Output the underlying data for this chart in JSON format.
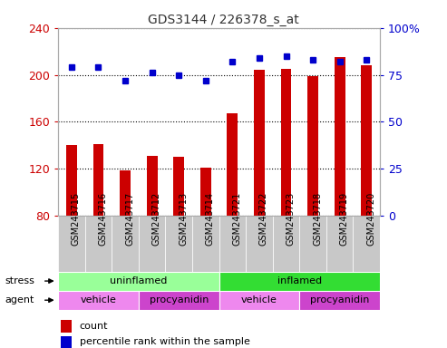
{
  "title": "GDS3144 / 226378_s_at",
  "samples": [
    "GSM243715",
    "GSM243716",
    "GSM243717",
    "GSM243712",
    "GSM243713",
    "GSM243714",
    "GSM243721",
    "GSM243722",
    "GSM243723",
    "GSM243718",
    "GSM243719",
    "GSM243720"
  ],
  "counts": [
    140,
    141,
    119,
    131,
    130,
    121,
    167,
    204,
    205,
    199,
    215,
    208
  ],
  "percentile_ranks": [
    79,
    79,
    72,
    76,
    75,
    72,
    82,
    84,
    85,
    83,
    82,
    83
  ],
  "ylim_left": [
    80,
    240
  ],
  "ylim_right": [
    0,
    100
  ],
  "yticks_left": [
    80,
    120,
    160,
    200,
    240
  ],
  "yticks_right": [
    0,
    25,
    50,
    75,
    100
  ],
  "bar_color": "#CC0000",
  "dot_color": "#0000CC",
  "bar_width": 0.4,
  "stress_labels": [
    {
      "label": "uninflamed",
      "start": 0,
      "end": 6,
      "color": "#99FF99"
    },
    {
      "label": "inflamed",
      "start": 6,
      "end": 12,
      "color": "#33DD33"
    }
  ],
  "agent_labels": [
    {
      "label": "vehicle",
      "start": 0,
      "end": 3,
      "color": "#EE88EE"
    },
    {
      "label": "procyanidin",
      "start": 3,
      "end": 6,
      "color": "#CC44CC"
    },
    {
      "label": "vehicle",
      "start": 6,
      "end": 9,
      "color": "#EE88EE"
    },
    {
      "label": "procyanidin",
      "start": 9,
      "end": 12,
      "color": "#CC44CC"
    }
  ],
  "stress_row_label": "stress",
  "agent_row_label": "agent",
  "legend_count_label": "count",
  "legend_pct_label": "percentile rank within the sample",
  "bar_color_legend": "#CC0000",
  "dot_color_legend": "#0000CC",
  "left_label_color": "#CC0000",
  "right_label_color": "#0000CC",
  "title_color": "#333333",
  "xticklabel_fontsize": 7,
  "yticklabel_fontsize": 9,
  "sample_bg_color": "#C8C8C8"
}
